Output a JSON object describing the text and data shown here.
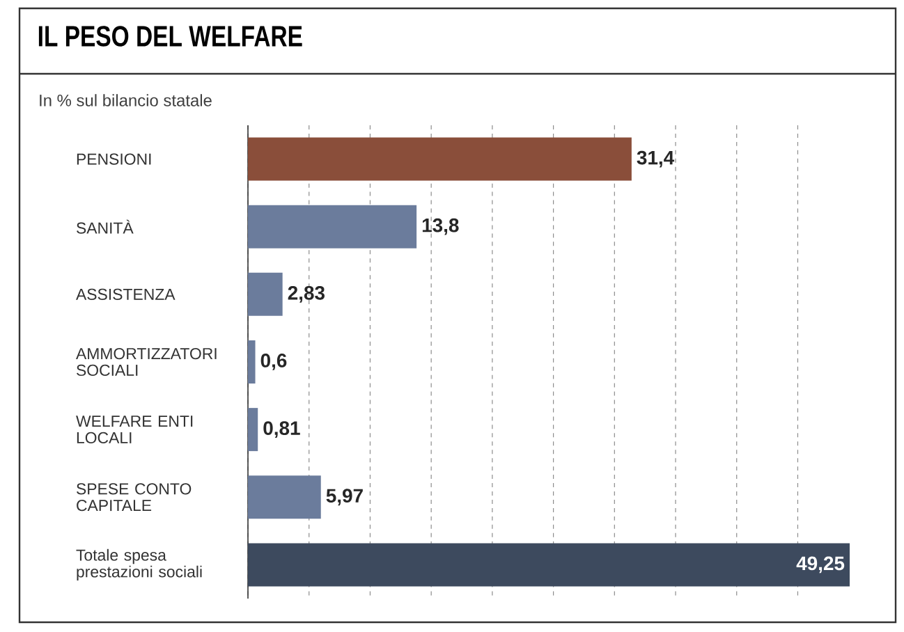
{
  "chart_data": {
    "type": "bar",
    "orientation": "horizontal",
    "title": "IL PESO DEL WELFARE",
    "subtitle": "In % sul bilancio statale",
    "categories": [
      "PENSIONI",
      "SANITÀ",
      "ASSISTENZA",
      "AMMORTIZZATORI SOCIALI",
      "WELFARE ENTI LOCALI",
      "SPESE CONTO CAPITALE",
      "Totale spesa prestazioni sociali"
    ],
    "values": [
      31.4,
      13.8,
      2.83,
      0.6,
      0.81,
      5.97,
      49.25
    ],
    "value_labels": [
      "31,4",
      "13,8",
      "2,83",
      "0,6",
      "0,81",
      "5,97",
      "49,25"
    ],
    "colors": [
      "#8a4e3a",
      "#6b7c9c",
      "#6b7c9c",
      "#6b7c9c",
      "#6b7c9c",
      "#6b7c9c",
      "#3d4a5e"
    ],
    "grid": true
  }
}
